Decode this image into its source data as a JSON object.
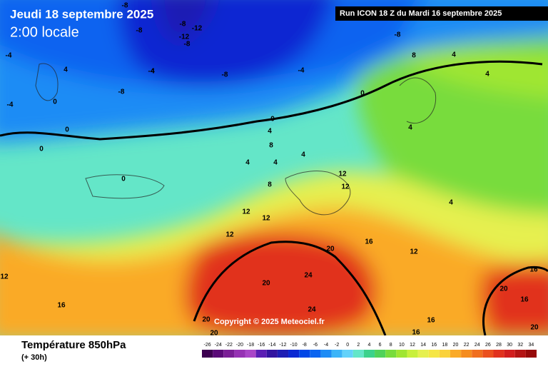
{
  "header": {
    "date": "Jeudi 18 septembre 2025",
    "time": "2:00 locale",
    "run": "Run ICON 18 Z du Mardi 16 septembre 2025"
  },
  "copyright": "Copyright © 2025 Meteociel.fr",
  "footer": {
    "title": "Température 850hPa",
    "subtitle": "(+ 30h)"
  },
  "legend": {
    "values": [
      -26,
      -24,
      -22,
      -20,
      -18,
      -16,
      -14,
      -12,
      -10,
      -8,
      -6,
      -4,
      -2,
      0,
      2,
      4,
      6,
      8,
      10,
      12,
      14,
      16,
      18,
      20,
      22,
      24,
      26,
      28,
      30,
      32,
      34
    ],
    "colors": [
      "#3c0050",
      "#5a0a78",
      "#7a1e96",
      "#9632b4",
      "#aa46c8",
      "#5a1eb4",
      "#3214a0",
      "#1e1eb4",
      "#0a28d2",
      "#0046e6",
      "#0a64f0",
      "#1e8cf5",
      "#3cb4f8",
      "#64d2fa",
      "#64e6c8",
      "#3cd28c",
      "#50d25a",
      "#78dc3c",
      "#a0e632",
      "#c8f03c",
      "#e6f050",
      "#f5e646",
      "#fad23c",
      "#faaa28",
      "#f58c1e",
      "#f06e1e",
      "#eb501e",
      "#e1321e",
      "#d21e1e",
      "#b41414",
      "#960a0a"
    ]
  },
  "contour_labels": [
    -8,
    -4,
    -4,
    4,
    4,
    -8,
    -8,
    -12,
    -12,
    -8,
    -4,
    -8,
    -8,
    -4,
    -8,
    0,
    0,
    0,
    0,
    0,
    0,
    4,
    4,
    8,
    4,
    4,
    4,
    12,
    12,
    8,
    4,
    12,
    12,
    12,
    20,
    16,
    12,
    24,
    20,
    24,
    20,
    20,
    16,
    16,
    20,
    16,
    16,
    20,
    12,
    16,
    4,
    4,
    8
  ]
}
